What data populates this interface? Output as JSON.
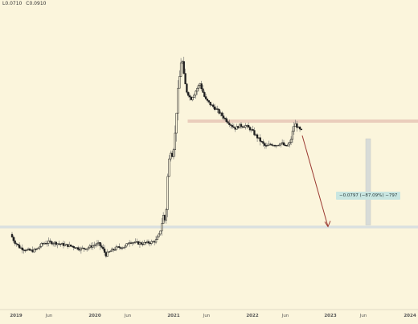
{
  "header": {
    "low_label": "L0.0710",
    "close_label": "C0.0910"
  },
  "measure": {
    "text": "−0.0797 (−87.09%) −797"
  },
  "colors": {
    "background": "#fbf5dc",
    "candle": "#1e1e1e",
    "wick": "#6b6b6b",
    "support_zone": "#d9e0e0",
    "resistance_line": "#e8c9b8",
    "arrow": "#9b3a32",
    "measure_bar": "#d8dcd8",
    "axis_text": "#555555"
  },
  "chart_data": {
    "type": "candlestick",
    "x_ticks": [
      "2019",
      "Jun",
      "2020",
      "Jun",
      "2021",
      "Jun",
      "2022",
      "Jun",
      "2023",
      "Jun",
      "2024"
    ],
    "resistance_level": 0.0915,
    "support_zone": [
      0.0105,
      0.0125
    ],
    "drop": {
      "from": 0.0915,
      "to": 0.0118
    },
    "price_path": [
      [
        2019.0,
        0.006
      ],
      [
        2019.05,
        0.0005
      ],
      [
        2019.12,
        -0.004
      ],
      [
        2019.2,
        -0.006
      ],
      [
        2019.3,
        -0.0065
      ],
      [
        2019.35,
        -0.005
      ],
      [
        2019.42,
        -0.001
      ],
      [
        2019.5,
        0.0
      ],
      [
        2019.58,
        -0.0005
      ],
      [
        2019.7,
        -0.002
      ],
      [
        2019.8,
        -0.003
      ],
      [
        2019.9,
        -0.005
      ],
      [
        2020.0,
        -0.0045
      ],
      [
        2020.08,
        -0.0025
      ],
      [
        2020.15,
        -0.001
      ],
      [
        2020.2,
        -0.0045
      ],
      [
        2020.25,
        -0.0095
      ],
      [
        2020.3,
        -0.007
      ],
      [
        2020.4,
        -0.004
      ],
      [
        2020.5,
        -0.0035
      ],
      [
        2020.55,
        0.0005
      ],
      [
        2020.65,
        -0.0005
      ],
      [
        2020.72,
        -0.001
      ],
      [
        2020.78,
        -0.0005
      ],
      [
        2020.85,
        0.0
      ],
      [
        2020.9,
        0.001
      ],
      [
        2020.95,
        0.006
      ],
      [
        2021.0,
        0.02
      ],
      [
        2021.03,
        0.015
      ],
      [
        2021.06,
        0.052
      ],
      [
        2021.09,
        0.07
      ],
      [
        2021.12,
        0.065
      ],
      [
        2021.15,
        0.078
      ],
      [
        2021.18,
        0.106
      ],
      [
        2021.21,
        0.124
      ],
      [
        2021.24,
        0.142
      ],
      [
        2021.27,
        0.125
      ],
      [
        2021.3,
        0.115
      ],
      [
        2021.36,
        0.108
      ],
      [
        2021.42,
        0.114
      ],
      [
        2021.48,
        0.12
      ],
      [
        2021.55,
        0.108
      ],
      [
        2021.62,
        0.104
      ],
      [
        2021.7,
        0.1
      ],
      [
        2021.78,
        0.095
      ],
      [
        2021.86,
        0.09
      ],
      [
        2021.94,
        0.086
      ],
      [
        2022.0,
        0.088
      ],
      [
        2022.08,
        0.088
      ],
      [
        2022.15,
        0.085
      ],
      [
        2022.22,
        0.08
      ],
      [
        2022.28,
        0.076
      ],
      [
        2022.34,
        0.072
      ],
      [
        2022.4,
        0.074
      ],
      [
        2022.48,
        0.0735
      ],
      [
        2022.55,
        0.075
      ],
      [
        2022.6,
        0.072
      ],
      [
        2022.66,
        0.075
      ],
      [
        2022.72,
        0.09
      ],
      [
        2022.77,
        0.086
      ],
      [
        2022.8,
        0.084
      ]
    ]
  }
}
